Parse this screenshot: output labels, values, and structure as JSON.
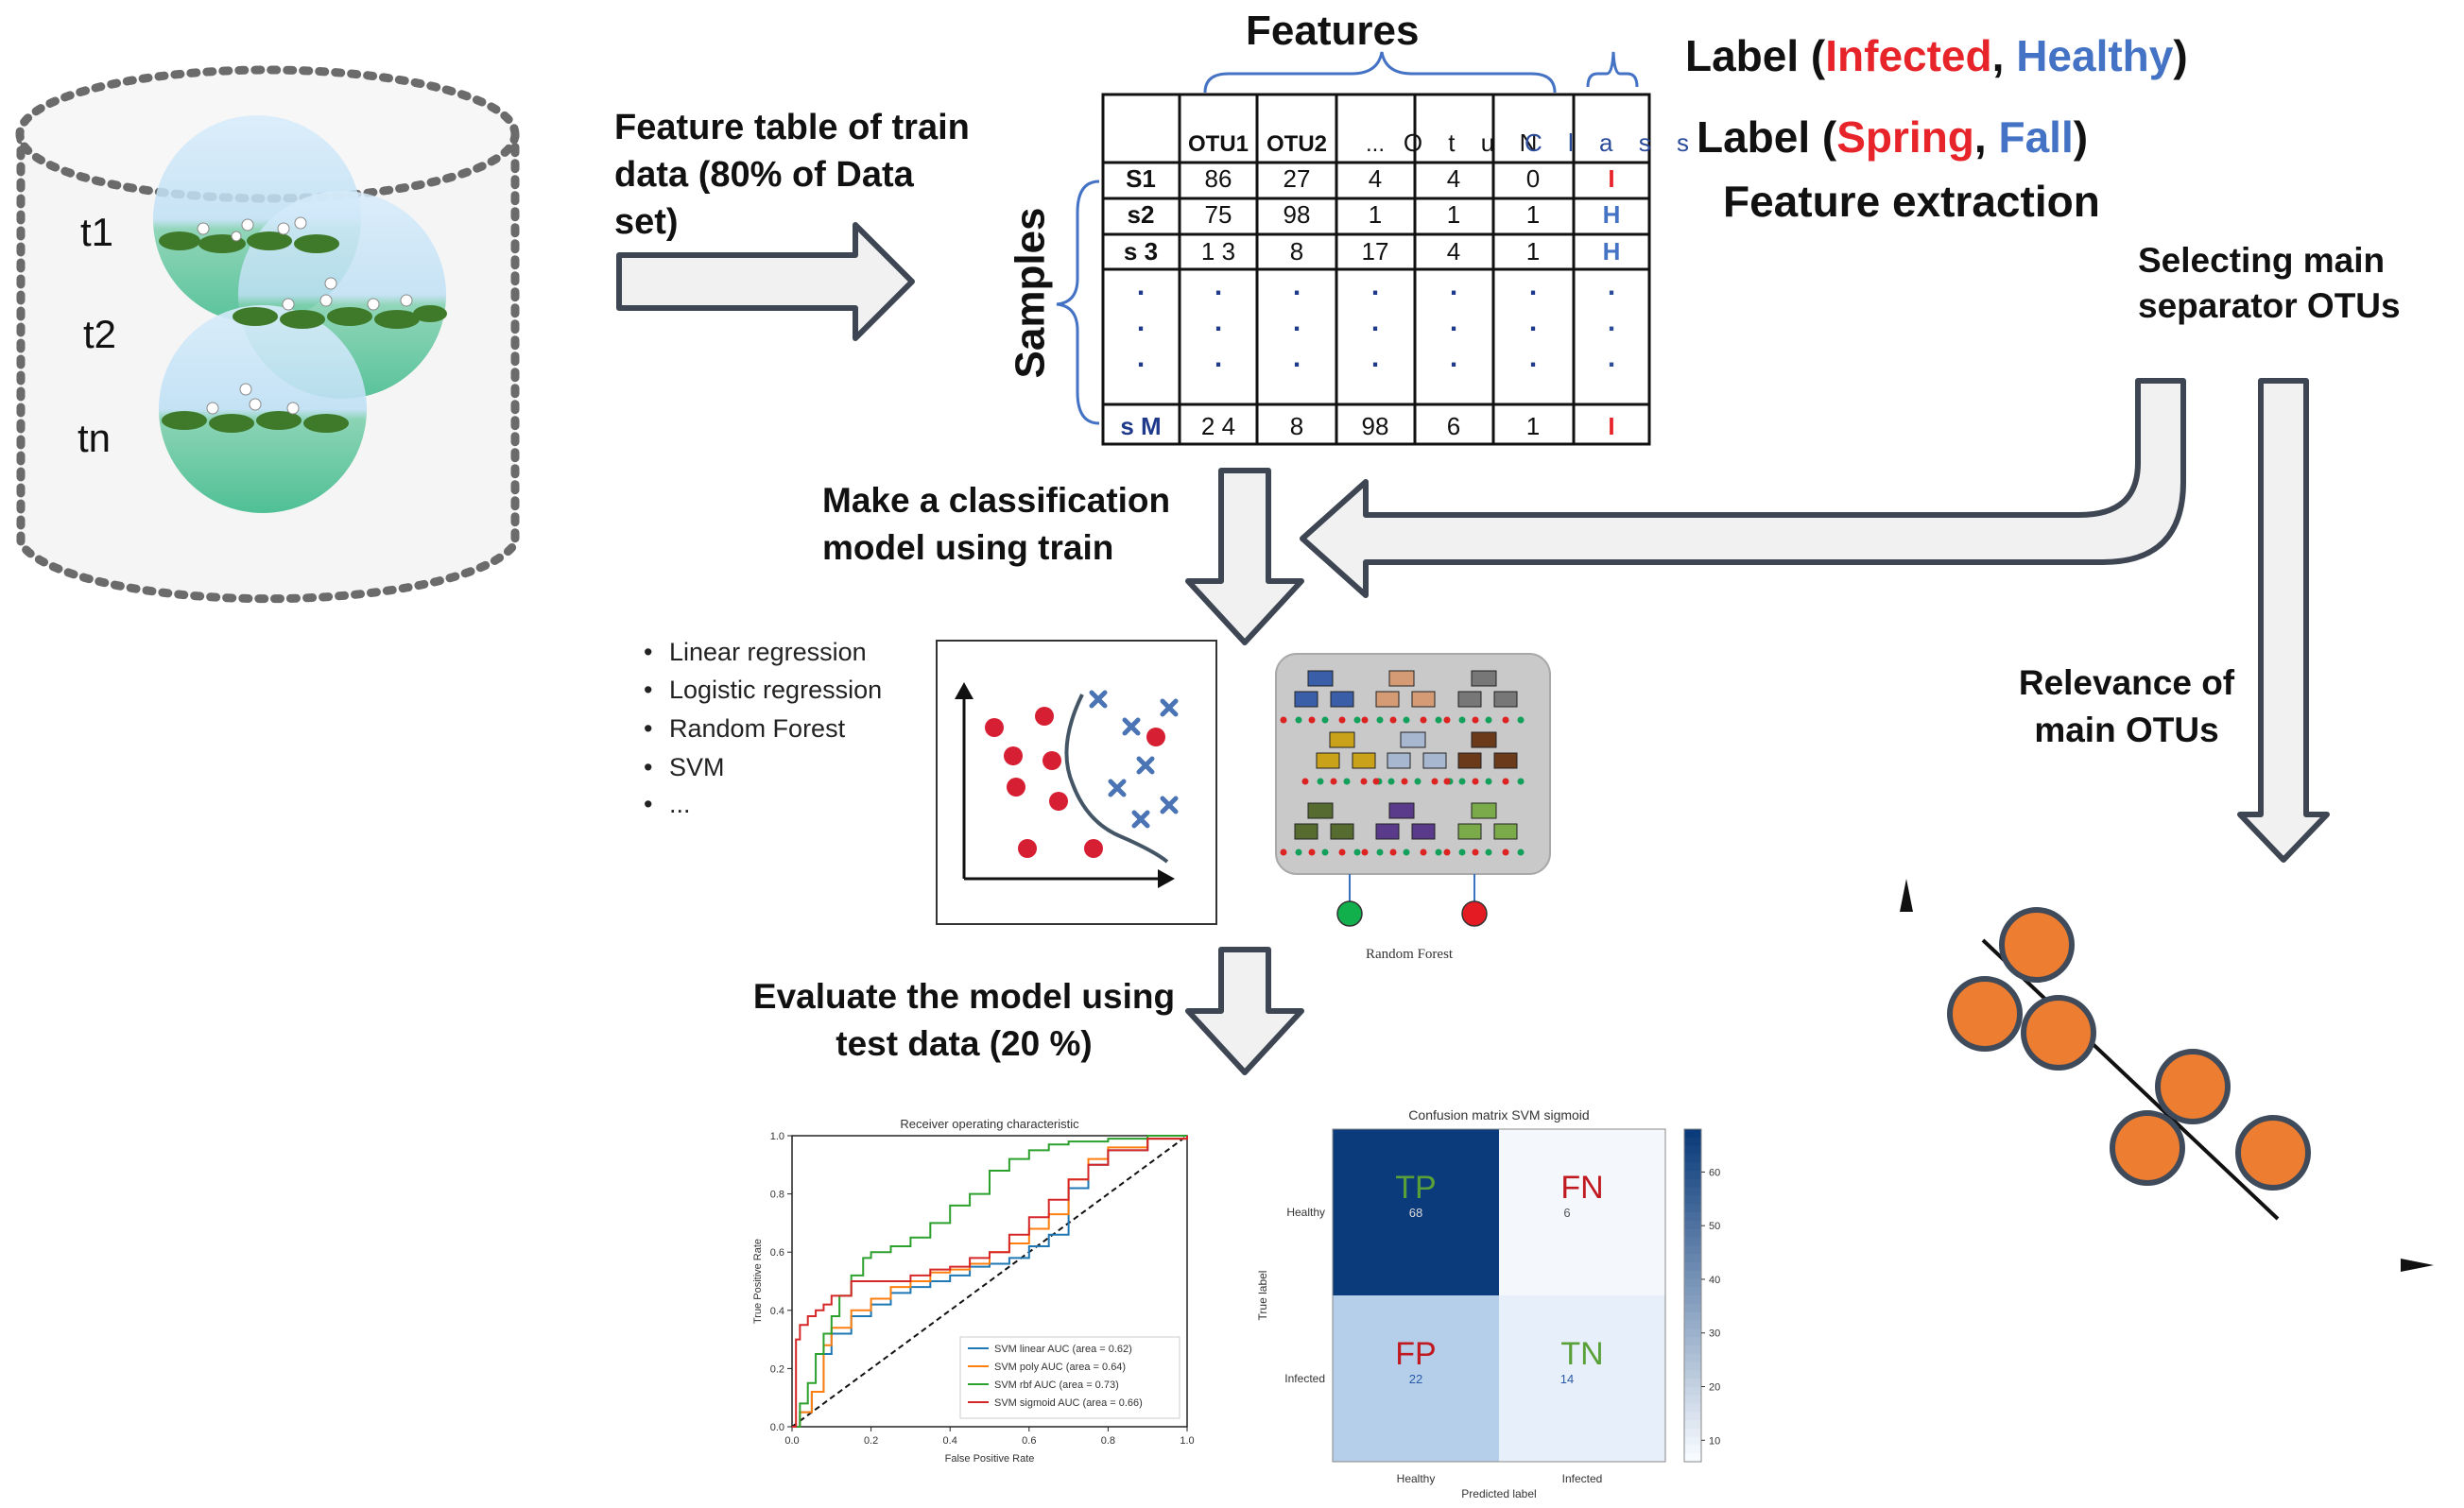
{
  "cylinder": {
    "labels": [
      "t1",
      "t2",
      "tn"
    ]
  },
  "feature_table_caption": "Feature table of train data (80% of Data set)",
  "features_title": "Features",
  "samples_title": "Samples",
  "label_line1": {
    "prefix": "Label (",
    "a": "Infected",
    "sep": ", ",
    "b": "Healthy",
    "suffix": ")"
  },
  "label_line2": {
    "prefix": "Label (",
    "a": "Spring",
    "sep": ", ",
    "b": "Fall",
    "suffix": ")"
  },
  "feature_extraction": "Feature extraction",
  "selecting_otus": "Selecting main separator OTUs",
  "relevance_otus": "Relevance of main OTUs",
  "make_model": "Make a classification model using train",
  "evaluate": "Evaluate the model using test data (20 %)",
  "methods": [
    "Linear regression",
    "Logistic regression",
    "Random Forest",
    "SVM",
    "..."
  ],
  "table": {
    "header": [
      "",
      "OTU1",
      "OTU2",
      "...",
      "O t u",
      "N",
      "C l a s s"
    ],
    "rows": [
      [
        "S1",
        "86",
        "27",
        "4",
        "4",
        "0",
        "I"
      ],
      [
        "s2",
        "75",
        "98",
        "1",
        "1",
        "1",
        "H"
      ],
      [
        "s 3",
        "1 3",
        "8",
        "17",
        "4",
        "1",
        "H"
      ],
      [
        ".",
        ".",
        ".",
        ".",
        ".",
        ".",
        "."
      ],
      [
        "s M",
        "2 4",
        "8",
        "98",
        "6",
        "1",
        "I"
      ]
    ]
  },
  "random_forest_caption": "Random Forest",
  "roc": {
    "title": "Receiver operating characteristic",
    "xlabel": "False Positive Rate",
    "ylabel": "True Positive Rate",
    "ticks": [
      "0.0",
      "0.2",
      "0.4",
      "0.6",
      "0.8",
      "1.0"
    ]
  },
  "confusion": {
    "title": "Confusion matrix SVM sigmoid",
    "xlabel": "Predicted label",
    "ylabel": "True label",
    "classes": [
      "Healthy",
      "Infected"
    ],
    "cells": [
      {
        "tag": "TP",
        "value": "68"
      },
      {
        "tag": "FN",
        "value": "6"
      },
      {
        "tag": "FP",
        "value": "22"
      },
      {
        "tag": "TN",
        "value": "14"
      }
    ],
    "colorbar_ticks": [
      "60",
      "50",
      "40",
      "30",
      "20",
      "10"
    ]
  },
  "chart_data": {
    "type": "line",
    "title": "Receiver operating characteristic",
    "xlabel": "False Positive Rate",
    "ylabel": "True Positive Rate",
    "xlim": [
      0,
      1
    ],
    "ylim": [
      0,
      1
    ],
    "series": [
      {
        "name": "SVM linear AUC (area = 0.62)",
        "color": "#1f77b4",
        "x": [
          0,
          0.02,
          0.05,
          0.08,
          0.1,
          0.15,
          0.2,
          0.25,
          0.3,
          0.35,
          0.4,
          0.45,
          0.5,
          0.55,
          0.6,
          0.65,
          0.7,
          0.75,
          0.8,
          0.9,
          1.0
        ],
        "y": [
          0,
          0.05,
          0.12,
          0.25,
          0.32,
          0.38,
          0.42,
          0.46,
          0.48,
          0.5,
          0.52,
          0.55,
          0.56,
          0.58,
          0.62,
          0.66,
          0.82,
          0.9,
          0.95,
          0.99,
          1.0
        ]
      },
      {
        "name": "SVM poly AUC (area = 0.64)",
        "color": "#ff7f0e",
        "x": [
          0,
          0.02,
          0.05,
          0.08,
          0.1,
          0.15,
          0.2,
          0.25,
          0.3,
          0.35,
          0.4,
          0.45,
          0.5,
          0.55,
          0.6,
          0.65,
          0.7,
          0.75,
          0.8,
          0.9,
          1.0
        ],
        "y": [
          0,
          0.05,
          0.12,
          0.28,
          0.34,
          0.4,
          0.44,
          0.48,
          0.5,
          0.53,
          0.54,
          0.56,
          0.6,
          0.63,
          0.68,
          0.73,
          0.85,
          0.92,
          0.96,
          0.99,
          1.0
        ]
      },
      {
        "name": "SVM rbf AUC (area = 0.73)",
        "color": "#2ca02c",
        "x": [
          0,
          0.02,
          0.04,
          0.06,
          0.08,
          0.1,
          0.12,
          0.15,
          0.18,
          0.2,
          0.25,
          0.3,
          0.35,
          0.4,
          0.45,
          0.5,
          0.55,
          0.6,
          0.65,
          0.7,
          0.8,
          0.9,
          1.0
        ],
        "y": [
          0,
          0.08,
          0.15,
          0.25,
          0.32,
          0.38,
          0.45,
          0.52,
          0.58,
          0.6,
          0.62,
          0.65,
          0.7,
          0.76,
          0.8,
          0.88,
          0.92,
          0.95,
          0.97,
          0.98,
          0.99,
          1.0,
          1.0
        ]
      },
      {
        "name": "SVM sigmoid AUC (area = 0.66)",
        "color": "#d62728",
        "x": [
          0,
          0.01,
          0.02,
          0.04,
          0.06,
          0.08,
          0.1,
          0.15,
          0.2,
          0.25,
          0.3,
          0.35,
          0.4,
          0.45,
          0.5,
          0.55,
          0.6,
          0.65,
          0.7,
          0.75,
          0.8,
          0.9,
          1.0
        ],
        "y": [
          0,
          0.3,
          0.35,
          0.38,
          0.4,
          0.42,
          0.45,
          0.5,
          0.5,
          0.5,
          0.52,
          0.54,
          0.55,
          0.58,
          0.6,
          0.66,
          0.72,
          0.78,
          0.85,
          0.9,
          0.95,
          0.99,
          1.0
        ]
      }
    ]
  },
  "colors": {
    "arrow_fill": "#f1f1f1",
    "arrow_stroke": "#3d4652",
    "otu_orange": "#ed7d31",
    "otu_stroke": "#3f4a5a",
    "red": "#e8242b",
    "blue": "#4472c4"
  }
}
